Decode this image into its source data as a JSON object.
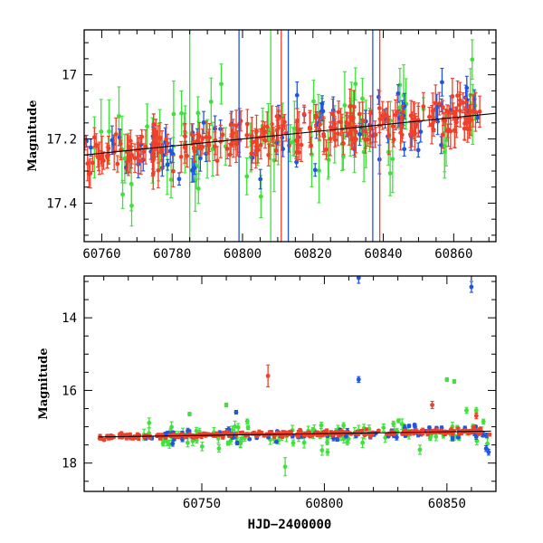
{
  "colors": {
    "blue": "#1f55e0",
    "green": "#3ee23a",
    "red": "#f0402a",
    "axis": "#000000"
  },
  "chart_data": [
    {
      "type": "scatter",
      "panel": "top",
      "ylabel": "Magnitude",
      "xlim": [
        60755,
        60872
      ],
      "ylim": [
        17.52,
        16.86
      ],
      "y_inverted": true,
      "x_major_ticks": [
        60760,
        60780,
        60800,
        60820,
        60840,
        60860
      ],
      "x_tick_labels": [
        "60760",
        "60780",
        "60800",
        "60820",
        "60840",
        "60860"
      ],
      "y_major_ticks": [
        17.0,
        17.2,
        17.4
      ],
      "y_tick_labels": [
        "17",
        "17.2",
        "17.4"
      ],
      "trend_line": {
        "x": [
          60755,
          60872
        ],
        "y": [
          17.25,
          17.12
        ]
      },
      "series": [
        {
          "color_key": "red",
          "x_range": [
            60755,
            60868
          ],
          "y_start": 17.25,
          "y_end": 17.12,
          "scatter": 0.03,
          "err": 0.04,
          "count": 260
        },
        {
          "color_key": "green",
          "x_range": [
            60755,
            60868
          ],
          "y_start": 17.27,
          "y_end": 17.13,
          "scatter": 0.08,
          "err": 0.07,
          "count": 90
        },
        {
          "color_key": "blue",
          "x_range": [
            60755,
            60868
          ],
          "y_start": 17.26,
          "y_end": 17.12,
          "scatter": 0.05,
          "err": 0.03,
          "count": 80
        }
      ]
    },
    {
      "type": "scatter",
      "panel": "bottom",
      "xlabel": "HJD−2400000",
      "ylabel": "Magnitude",
      "xlim": [
        60702,
        60870
      ],
      "ylim": [
        18.78,
        12.85
      ],
      "y_inverted": true,
      "x_major_ticks": [
        60750,
        60800,
        60850
      ],
      "x_tick_labels": [
        "60750",
        "60800",
        "60850"
      ],
      "y_major_ticks": [
        14,
        16,
        18
      ],
      "y_tick_labels": [
        "14",
        "16",
        "18"
      ],
      "trend_line": {
        "x": [
          60708,
          60868
        ],
        "y": [
          17.28,
          17.12
        ]
      },
      "outliers": [
        {
          "color_key": "blue",
          "x": 60814,
          "y": 12.9,
          "err": 0.15
        },
        {
          "color_key": "blue",
          "x": 60860,
          "y": 13.15,
          "err": 0.15
        },
        {
          "color_key": "red",
          "x": 60777,
          "y": 15.6,
          "err": 0.3
        },
        {
          "color_key": "blue",
          "x": 60814,
          "y": 15.7,
          "err": 0.08
        },
        {
          "color_key": "green",
          "x": 60850,
          "y": 15.7,
          "err": 0.05
        },
        {
          "color_key": "green",
          "x": 60853,
          "y": 15.75,
          "err": 0.05
        },
        {
          "color_key": "green",
          "x": 60760,
          "y": 16.4,
          "err": 0.05
        },
        {
          "color_key": "green",
          "x": 60745,
          "y": 16.65,
          "err": 0.05
        },
        {
          "color_key": "blue",
          "x": 60764,
          "y": 16.6,
          "err": 0.05
        },
        {
          "color_key": "red",
          "x": 60844,
          "y": 16.4,
          "err": 0.1
        },
        {
          "color_key": "green",
          "x": 60858,
          "y": 16.55,
          "err": 0.08
        },
        {
          "color_key": "green",
          "x": 60862,
          "y": 16.55,
          "err": 0.08
        },
        {
          "color_key": "red",
          "x": 60862,
          "y": 16.7,
          "err": 0.08
        },
        {
          "color_key": "green",
          "x": 60784,
          "y": 18.1,
          "err": 0.25
        },
        {
          "color_key": "green",
          "x": 60757,
          "y": 17.6,
          "err": 0.1
        },
        {
          "color_key": "blue",
          "x": 60866,
          "y": 17.6,
          "err": 0.08
        },
        {
          "color_key": "blue",
          "x": 60867,
          "y": 17.7,
          "err": 0.08
        }
      ],
      "series": [
        {
          "color_key": "red",
          "x_range": [
            60708,
            60868
          ],
          "y_start": 17.28,
          "y_end": 17.12,
          "scatter": 0.04,
          "err": 0.04,
          "count": 260
        },
        {
          "color_key": "green",
          "x_range": [
            60726,
            60868
          ],
          "y_start": 17.28,
          "y_end": 17.12,
          "scatter": 0.18,
          "err": 0.1,
          "count": 110
        },
        {
          "color_key": "blue",
          "x_range": [
            60726,
            60868
          ],
          "y_start": 17.28,
          "y_end": 17.12,
          "scatter": 0.1,
          "err": 0.05,
          "count": 90
        }
      ]
    }
  ]
}
